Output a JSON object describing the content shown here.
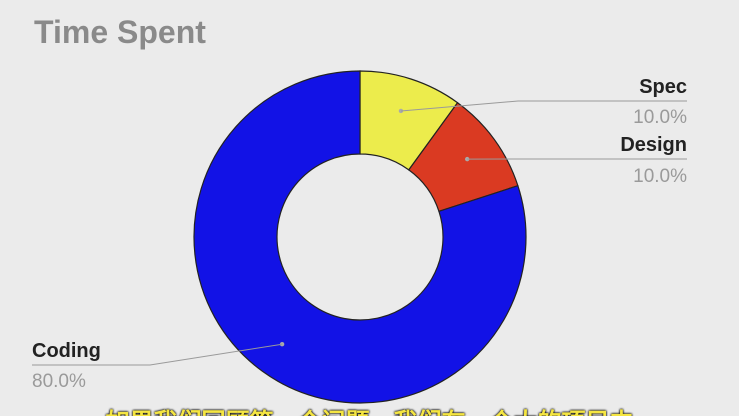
{
  "chart_data": {
    "type": "pie",
    "title": "Time Spent",
    "categories": [
      "Spec",
      "Design",
      "Coding"
    ],
    "values": [
      10.0,
      10.0,
      80.0
    ],
    "value_labels": [
      "10.0%",
      "10.0%",
      "80.0%"
    ],
    "colors": [
      "#ecec4c",
      "#da3a22",
      "#1212e6"
    ],
    "donut": true,
    "legend": "none"
  },
  "video_subtitle": "如果我们回顾第一个问题，我们在一个大的项目中"
}
